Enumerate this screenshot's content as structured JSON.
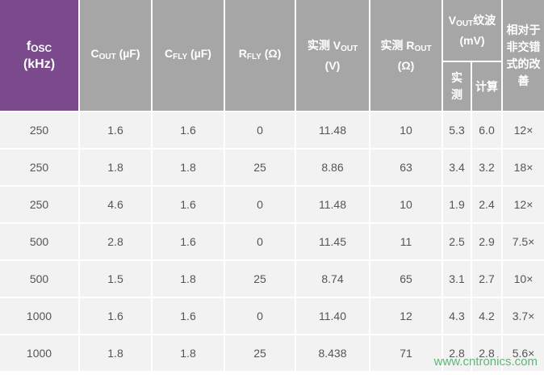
{
  "table": {
    "headers": [
      {
        "base": "f",
        "sub": "OSC",
        "unit": "(kHz)"
      },
      {
        "base": "C",
        "sub": "OUT",
        "unit": "(µF)"
      },
      {
        "base": "C",
        "sub": "FLY",
        "unit": "(µF)"
      },
      {
        "base": "R",
        "sub": "FLY",
        "unit": "(Ω)"
      },
      {
        "base": "实测 V",
        "sub": "OUT",
        "unit": "(V)"
      },
      {
        "base": "实测 R",
        "sub": "OUT",
        "unit": "(Ω)"
      },
      {
        "base": "V",
        "sub": "OUT",
        "unit": "纹波 (mV)",
        "sub_columns": [
          "实测",
          "计算"
        ]
      },
      {
        "text": "相对于非交错式的改善"
      }
    ],
    "rows": [
      [
        "250",
        "1.6",
        "1.6",
        "0",
        "11.48",
        "10",
        "5.3",
        "6.0",
        "12×"
      ],
      [
        "250",
        "1.8",
        "1.8",
        "25",
        "8.86",
        "63",
        "3.4",
        "3.2",
        "18×"
      ],
      [
        "250",
        "4.6",
        "1.6",
        "0",
        "11.48",
        "10",
        "1.9",
        "2.4",
        "12×"
      ],
      [
        "500",
        "2.8",
        "1.6",
        "0",
        "11.45",
        "11",
        "2.5",
        "2.9",
        "7.5×"
      ],
      [
        "500",
        "1.5",
        "1.8",
        "25",
        "8.74",
        "65",
        "3.1",
        "2.7",
        "10×"
      ],
      [
        "1000",
        "1.6",
        "1.6",
        "0",
        "11.40",
        "12",
        "4.3",
        "4.2",
        "3.7×"
      ],
      [
        "1000",
        "1.8",
        "1.8",
        "25",
        "8.438",
        "71",
        "2.8",
        "2.8",
        "5.6×"
      ]
    ]
  },
  "watermark": "www.cntronics.com"
}
